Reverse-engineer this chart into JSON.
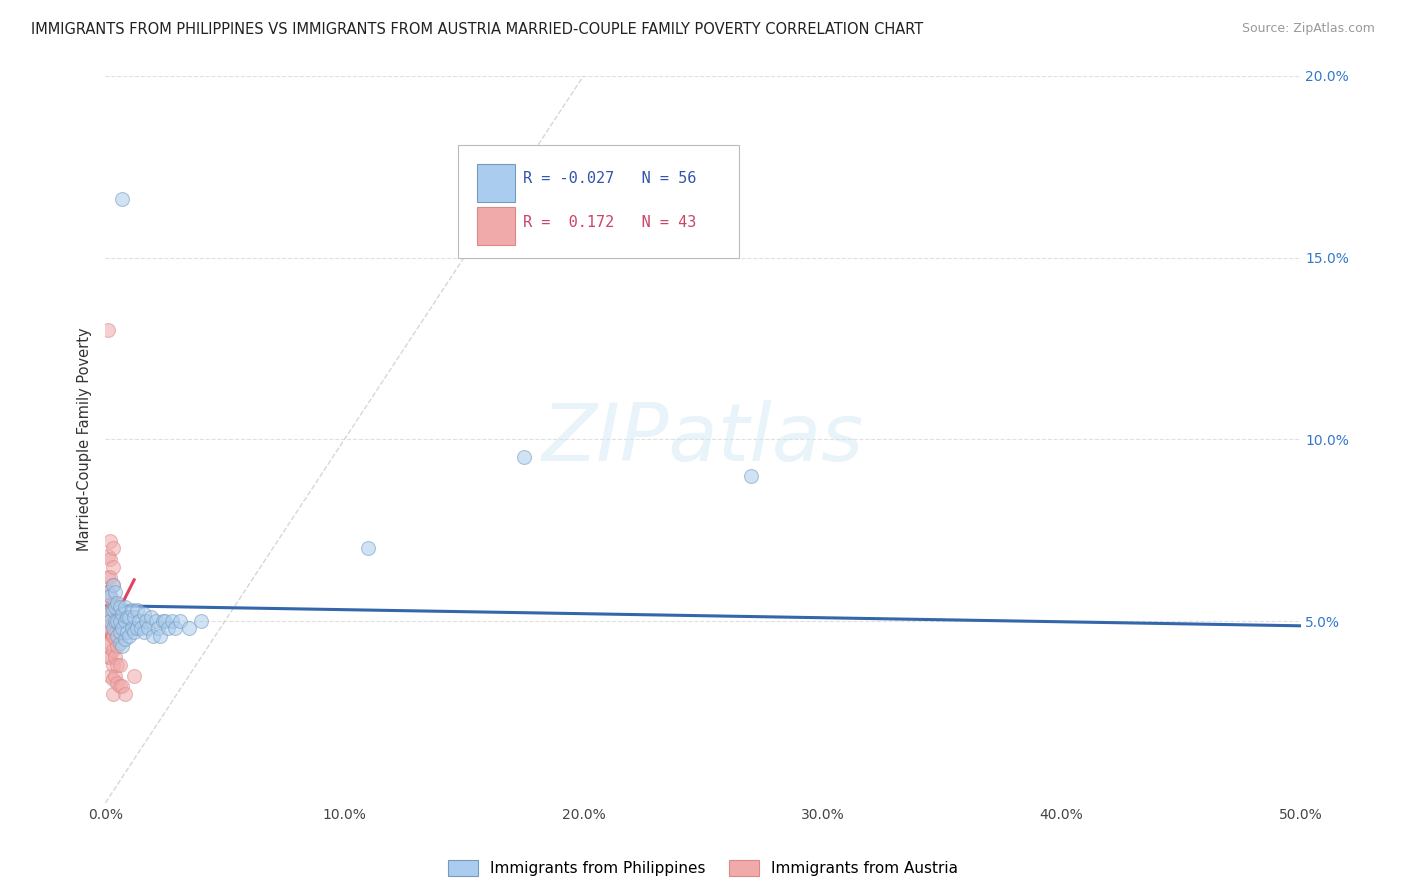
{
  "title": "IMMIGRANTS FROM PHILIPPINES VS IMMIGRANTS FROM AUSTRIA MARRIED-COUPLE FAMILY POVERTY CORRELATION CHART",
  "source": "Source: ZipAtlas.com",
  "ylabel": "Married-Couple Family Poverty",
  "xlim": [
    0,
    0.5
  ],
  "ylim": [
    0,
    0.2
  ],
  "xticks": [
    0.0,
    0.1,
    0.2,
    0.3,
    0.4,
    0.5
  ],
  "xtick_labels": [
    "0.0%",
    "10.0%",
    "20.0%",
    "30.0%",
    "40.0%",
    "50.0%"
  ],
  "yticks": [
    0.0,
    0.05,
    0.1,
    0.15,
    0.2
  ],
  "ytick_labels_right": [
    "",
    "5.0%",
    "10.0%",
    "15.0%",
    "20.0%"
  ],
  "philippines_color": "#aaccee",
  "philippines_edge": "#7799bb",
  "austria_color": "#f0aaaa",
  "austria_edge": "#dd8888",
  "trend_philippines_color": "#3366aa",
  "trend_austria_color": "#dd4466",
  "diagonal_color": "#cccccc",
  "diagonal_pink": "#f0aaaa",
  "background_color": "#ffffff",
  "grid_color": "#dddddd",
  "R_philippines": -0.027,
  "N_philippines": 56,
  "R_austria": 0.172,
  "N_austria": 43,
  "marker_size": 100,
  "alpha_fill": 0.55,
  "phil_x": [
    0.001,
    0.001,
    0.002,
    0.002,
    0.003,
    0.003,
    0.003,
    0.004,
    0.004,
    0.004,
    0.005,
    0.005,
    0.005,
    0.006,
    0.006,
    0.006,
    0.006,
    0.007,
    0.007,
    0.007,
    0.007,
    0.008,
    0.008,
    0.008,
    0.009,
    0.009,
    0.01,
    0.01,
    0.011,
    0.011,
    0.012,
    0.012,
    0.013,
    0.013,
    0.014,
    0.015,
    0.016,
    0.016,
    0.017,
    0.018,
    0.019,
    0.02,
    0.021,
    0.022,
    0.023,
    0.024,
    0.025,
    0.026,
    0.028,
    0.029,
    0.031,
    0.035,
    0.04,
    0.11,
    0.175,
    0.27
  ],
  "phil_y": [
    0.052,
    0.058,
    0.05,
    0.057,
    0.048,
    0.053,
    0.06,
    0.05,
    0.054,
    0.058,
    0.046,
    0.05,
    0.055,
    0.044,
    0.047,
    0.05,
    0.054,
    0.043,
    0.048,
    0.052,
    0.166,
    0.045,
    0.05,
    0.054,
    0.047,
    0.051,
    0.046,
    0.051,
    0.048,
    0.053,
    0.047,
    0.051,
    0.048,
    0.053,
    0.05,
    0.048,
    0.047,
    0.052,
    0.05,
    0.048,
    0.051,
    0.046,
    0.05,
    0.048,
    0.046,
    0.05,
    0.05,
    0.048,
    0.05,
    0.048,
    0.05,
    0.048,
    0.05,
    0.07,
    0.095,
    0.09
  ],
  "aust_x": [
    0.0005,
    0.0005,
    0.001,
    0.001,
    0.001,
    0.001,
    0.001,
    0.001,
    0.001,
    0.001,
    0.001,
    0.002,
    0.002,
    0.002,
    0.002,
    0.002,
    0.002,
    0.002,
    0.002,
    0.002,
    0.003,
    0.003,
    0.003,
    0.003,
    0.003,
    0.003,
    0.003,
    0.003,
    0.003,
    0.003,
    0.004,
    0.004,
    0.004,
    0.004,
    0.004,
    0.005,
    0.005,
    0.005,
    0.006,
    0.006,
    0.007,
    0.008,
    0.012
  ],
  "aust_y": [
    0.052,
    0.058,
    0.04,
    0.043,
    0.047,
    0.05,
    0.054,
    0.058,
    0.062,
    0.068,
    0.13,
    0.035,
    0.04,
    0.044,
    0.048,
    0.052,
    0.057,
    0.062,
    0.067,
    0.072,
    0.03,
    0.034,
    0.038,
    0.042,
    0.046,
    0.05,
    0.055,
    0.06,
    0.065,
    0.07,
    0.035,
    0.04,
    0.045,
    0.05,
    0.055,
    0.033,
    0.038,
    0.043,
    0.032,
    0.038,
    0.032,
    0.03,
    0.035
  ],
  "legend_text_color_phil": "#3355aa",
  "legend_text_color_aust": "#cc4466"
}
